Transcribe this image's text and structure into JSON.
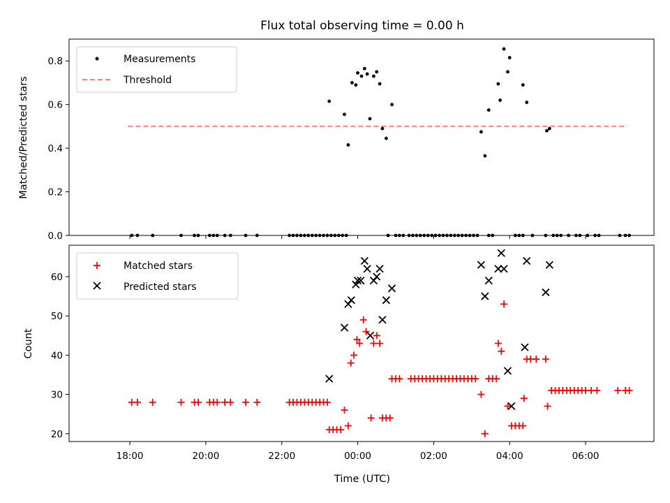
{
  "colors": {
    "measurements": "#000000",
    "threshold": "#ff7f7f",
    "matched": "#ff0000",
    "predicted": "#000000"
  },
  "chart_data": [
    {
      "type": "scatter",
      "title": "Flux total observing time = 0.00 h",
      "ylabel": "Matched/Predicted stars",
      "xlabel": "",
      "xlim": [
        -7.6,
        7.8
      ],
      "ylim": [
        0,
        0.9
      ],
      "yticks": [
        0.0,
        0.2,
        0.4,
        0.6,
        0.8
      ],
      "ytick_labels": [
        "0.0",
        "0.2",
        "0.4",
        "0.6",
        "0.8"
      ],
      "legend_position": "upper-left",
      "threshold": {
        "name": "Threshold",
        "value": 0.5,
        "x_range": [
          -6.05,
          7.1
        ]
      },
      "series": [
        {
          "name": "Measurements",
          "marker": "dot",
          "points": [
            [
              -5.95,
              0
            ],
            [
              -5.8,
              0
            ],
            [
              -5.4,
              0
            ],
            [
              -4.65,
              0
            ],
            [
              -4.3,
              0
            ],
            [
              -4.2,
              0
            ],
            [
              -3.9,
              0
            ],
            [
              -3.8,
              0
            ],
            [
              -3.7,
              0
            ],
            [
              -3.5,
              0
            ],
            [
              -3.35,
              0
            ],
            [
              -2.95,
              0
            ],
            [
              -2.65,
              0
            ],
            [
              -1.8,
              0
            ],
            [
              -1.7,
              0
            ],
            [
              -1.6,
              0
            ],
            [
              -1.5,
              0
            ],
            [
              -1.4,
              0
            ],
            [
              -1.3,
              0
            ],
            [
              -1.2,
              0
            ],
            [
              -1.1,
              0
            ],
            [
              -1.0,
              0
            ],
            [
              -0.9,
              0
            ],
            [
              -0.8,
              0
            ],
            [
              -0.7,
              0
            ],
            [
              -0.6,
              0
            ],
            [
              -0.5,
              0
            ],
            [
              -0.4,
              0
            ],
            [
              -0.3,
              0
            ],
            [
              -0.75,
              0.615
            ],
            [
              -0.35,
              0.555
            ],
            [
              -0.25,
              0.415
            ],
            [
              -0.15,
              0.7
            ],
            [
              -0.05,
              0.69
            ],
            [
              0.0,
              0.745
            ],
            [
              0.1,
              0.73
            ],
            [
              0.18,
              0.765
            ],
            [
              0.25,
              0.74
            ],
            [
              0.32,
              0.535
            ],
            [
              0.42,
              0.73
            ],
            [
              0.5,
              0.75
            ],
            [
              0.58,
              0.695
            ],
            [
              0.65,
              0.49
            ],
            [
              0.75,
              0.445
            ],
            [
              0.9,
              0.6
            ],
            [
              0.8,
              0
            ],
            [
              1.0,
              0
            ],
            [
              1.1,
              0
            ],
            [
              1.2,
              0
            ],
            [
              1.35,
              0
            ],
            [
              1.45,
              0
            ],
            [
              1.55,
              0
            ],
            [
              1.65,
              0
            ],
            [
              1.75,
              0
            ],
            [
              1.85,
              0
            ],
            [
              1.95,
              0
            ],
            [
              2.05,
              0
            ],
            [
              2.15,
              0
            ],
            [
              2.25,
              0
            ],
            [
              2.35,
              0
            ],
            [
              2.45,
              0
            ],
            [
              2.55,
              0
            ],
            [
              2.65,
              0
            ],
            [
              2.75,
              0
            ],
            [
              2.85,
              0
            ],
            [
              2.95,
              0
            ],
            [
              3.05,
              0
            ],
            [
              3.15,
              0
            ],
            [
              3.45,
              0
            ],
            [
              3.55,
              0
            ],
            [
              3.25,
              0.475
            ],
            [
              3.35,
              0.365
            ],
            [
              3.45,
              0.575
            ],
            [
              3.7,
              0.695
            ],
            [
              3.75,
              0.62
            ],
            [
              3.85,
              0.855
            ],
            [
              3.95,
              0.75
            ],
            [
              4.0,
              0.815
            ],
            [
              4.35,
              0.69
            ],
            [
              4.45,
              0.61
            ],
            [
              4.15,
              0
            ],
            [
              4.25,
              0
            ],
            [
              4.35,
              0
            ],
            [
              4.6,
              0
            ],
            [
              4.95,
              0
            ],
            [
              5.15,
              0
            ],
            [
              5.25,
              0
            ],
            [
              5.35,
              0
            ],
            [
              5.55,
              0
            ],
            [
              5.75,
              0
            ],
            [
              5.85,
              0
            ],
            [
              6.05,
              0
            ],
            [
              6.25,
              0
            ],
            [
              6.35,
              0
            ],
            [
              6.9,
              0
            ],
            [
              7.05,
              0
            ],
            [
              7.15,
              0
            ],
            [
              4.98,
              0.48
            ],
            [
              5.05,
              0.49
            ]
          ]
        }
      ]
    },
    {
      "type": "scatter",
      "title": "",
      "ylabel": "Count",
      "xlabel": "Time (UTC)",
      "xlim": [
        -7.6,
        7.8
      ],
      "ylim": [
        18,
        68
      ],
      "yticks": [
        20,
        30,
        40,
        50,
        60
      ],
      "ytick_labels": [
        "20",
        "30",
        "40",
        "50",
        "60"
      ],
      "xticks": [
        -6,
        -4,
        -2,
        0,
        2,
        4,
        6
      ],
      "xtick_labels": [
        "18:00",
        "20:00",
        "22:00",
        "00:00",
        "02:00",
        "04:00",
        "06:00"
      ],
      "legend_position": "upper-left",
      "series": [
        {
          "name": "Matched stars",
          "marker": "plus",
          "points": [
            [
              -5.95,
              28
            ],
            [
              -5.8,
              28
            ],
            [
              -5.4,
              28
            ],
            [
              -4.65,
              28
            ],
            [
              -4.3,
              28
            ],
            [
              -4.2,
              28
            ],
            [
              -3.9,
              28
            ],
            [
              -3.8,
              28
            ],
            [
              -3.7,
              28
            ],
            [
              -3.5,
              28
            ],
            [
              -3.35,
              28
            ],
            [
              -2.95,
              28
            ],
            [
              -2.65,
              28
            ],
            [
              -1.8,
              28
            ],
            [
              -1.7,
              28
            ],
            [
              -1.6,
              28
            ],
            [
              -1.5,
              28
            ],
            [
              -1.4,
              28
            ],
            [
              -1.3,
              28
            ],
            [
              -1.2,
              28
            ],
            [
              -1.1,
              28
            ],
            [
              -1.0,
              28
            ],
            [
              -0.9,
              28
            ],
            [
              -0.8,
              28
            ],
            [
              -0.75,
              21
            ],
            [
              -0.65,
              21
            ],
            [
              -0.55,
              21
            ],
            [
              -0.45,
              21
            ],
            [
              -0.35,
              26
            ],
            [
              -0.25,
              22
            ],
            [
              -0.18,
              38
            ],
            [
              -0.1,
              40
            ],
            [
              -0.02,
              44
            ],
            [
              0.05,
              43
            ],
            [
              0.15,
              49
            ],
            [
              0.22,
              46
            ],
            [
              0.35,
              24
            ],
            [
              0.42,
              43
            ],
            [
              0.5,
              45
            ],
            [
              0.58,
              43
            ],
            [
              0.65,
              24
            ],
            [
              0.75,
              24
            ],
            [
              0.85,
              24
            ],
            [
              0.9,
              34
            ],
            [
              1.0,
              34
            ],
            [
              1.1,
              34
            ],
            [
              1.4,
              34
            ],
            [
              1.5,
              34
            ],
            [
              1.6,
              34
            ],
            [
              1.7,
              34
            ],
            [
              1.8,
              34
            ],
            [
              1.9,
              34
            ],
            [
              2.0,
              34
            ],
            [
              2.1,
              34
            ],
            [
              2.2,
              34
            ],
            [
              2.3,
              34
            ],
            [
              2.4,
              34
            ],
            [
              2.5,
              34
            ],
            [
              2.6,
              34
            ],
            [
              2.7,
              34
            ],
            [
              2.8,
              34
            ],
            [
              2.9,
              34
            ],
            [
              3.0,
              34
            ],
            [
              3.1,
              34
            ],
            [
              3.25,
              30
            ],
            [
              3.35,
              20
            ],
            [
              3.45,
              34
            ],
            [
              3.55,
              34
            ],
            [
              3.65,
              34
            ],
            [
              3.7,
              43
            ],
            [
              3.78,
              41
            ],
            [
              3.85,
              53
            ],
            [
              3.95,
              27
            ],
            [
              4.05,
              22
            ],
            [
              4.15,
              22
            ],
            [
              4.25,
              22
            ],
            [
              4.35,
              22
            ],
            [
              4.38,
              29
            ],
            [
              4.45,
              39
            ],
            [
              4.55,
              39
            ],
            [
              4.7,
              39
            ],
            [
              4.95,
              39
            ],
            [
              5.0,
              27
            ],
            [
              5.1,
              31
            ],
            [
              5.2,
              31
            ],
            [
              5.3,
              31
            ],
            [
              5.4,
              31
            ],
            [
              5.5,
              31
            ],
            [
              5.6,
              31
            ],
            [
              5.7,
              31
            ],
            [
              5.8,
              31
            ],
            [
              5.9,
              31
            ],
            [
              6.0,
              31
            ],
            [
              6.15,
              31
            ],
            [
              6.3,
              31
            ],
            [
              6.85,
              31
            ],
            [
              7.05,
              31
            ],
            [
              7.15,
              31
            ]
          ]
        },
        {
          "name": "Predicted stars",
          "marker": "x",
          "points": [
            [
              -0.75,
              34
            ],
            [
              -0.35,
              47
            ],
            [
              -0.25,
              53
            ],
            [
              -0.17,
              54
            ],
            [
              -0.05,
              58
            ],
            [
              0.0,
              59
            ],
            [
              0.08,
              59
            ],
            [
              0.18,
              64
            ],
            [
              0.25,
              62
            ],
            [
              0.33,
              45
            ],
            [
              0.42,
              59
            ],
            [
              0.5,
              60
            ],
            [
              0.58,
              62
            ],
            [
              0.65,
              49
            ],
            [
              0.75,
              54
            ],
            [
              0.9,
              57
            ],
            [
              3.25,
              63
            ],
            [
              3.35,
              55
            ],
            [
              3.45,
              59
            ],
            [
              3.7,
              62
            ],
            [
              3.78,
              66
            ],
            [
              3.85,
              62
            ],
            [
              3.95,
              36
            ],
            [
              4.05,
              27
            ],
            [
              4.4,
              42
            ],
            [
              4.45,
              64
            ],
            [
              4.95,
              56
            ],
            [
              5.05,
              63
            ]
          ]
        }
      ]
    }
  ]
}
